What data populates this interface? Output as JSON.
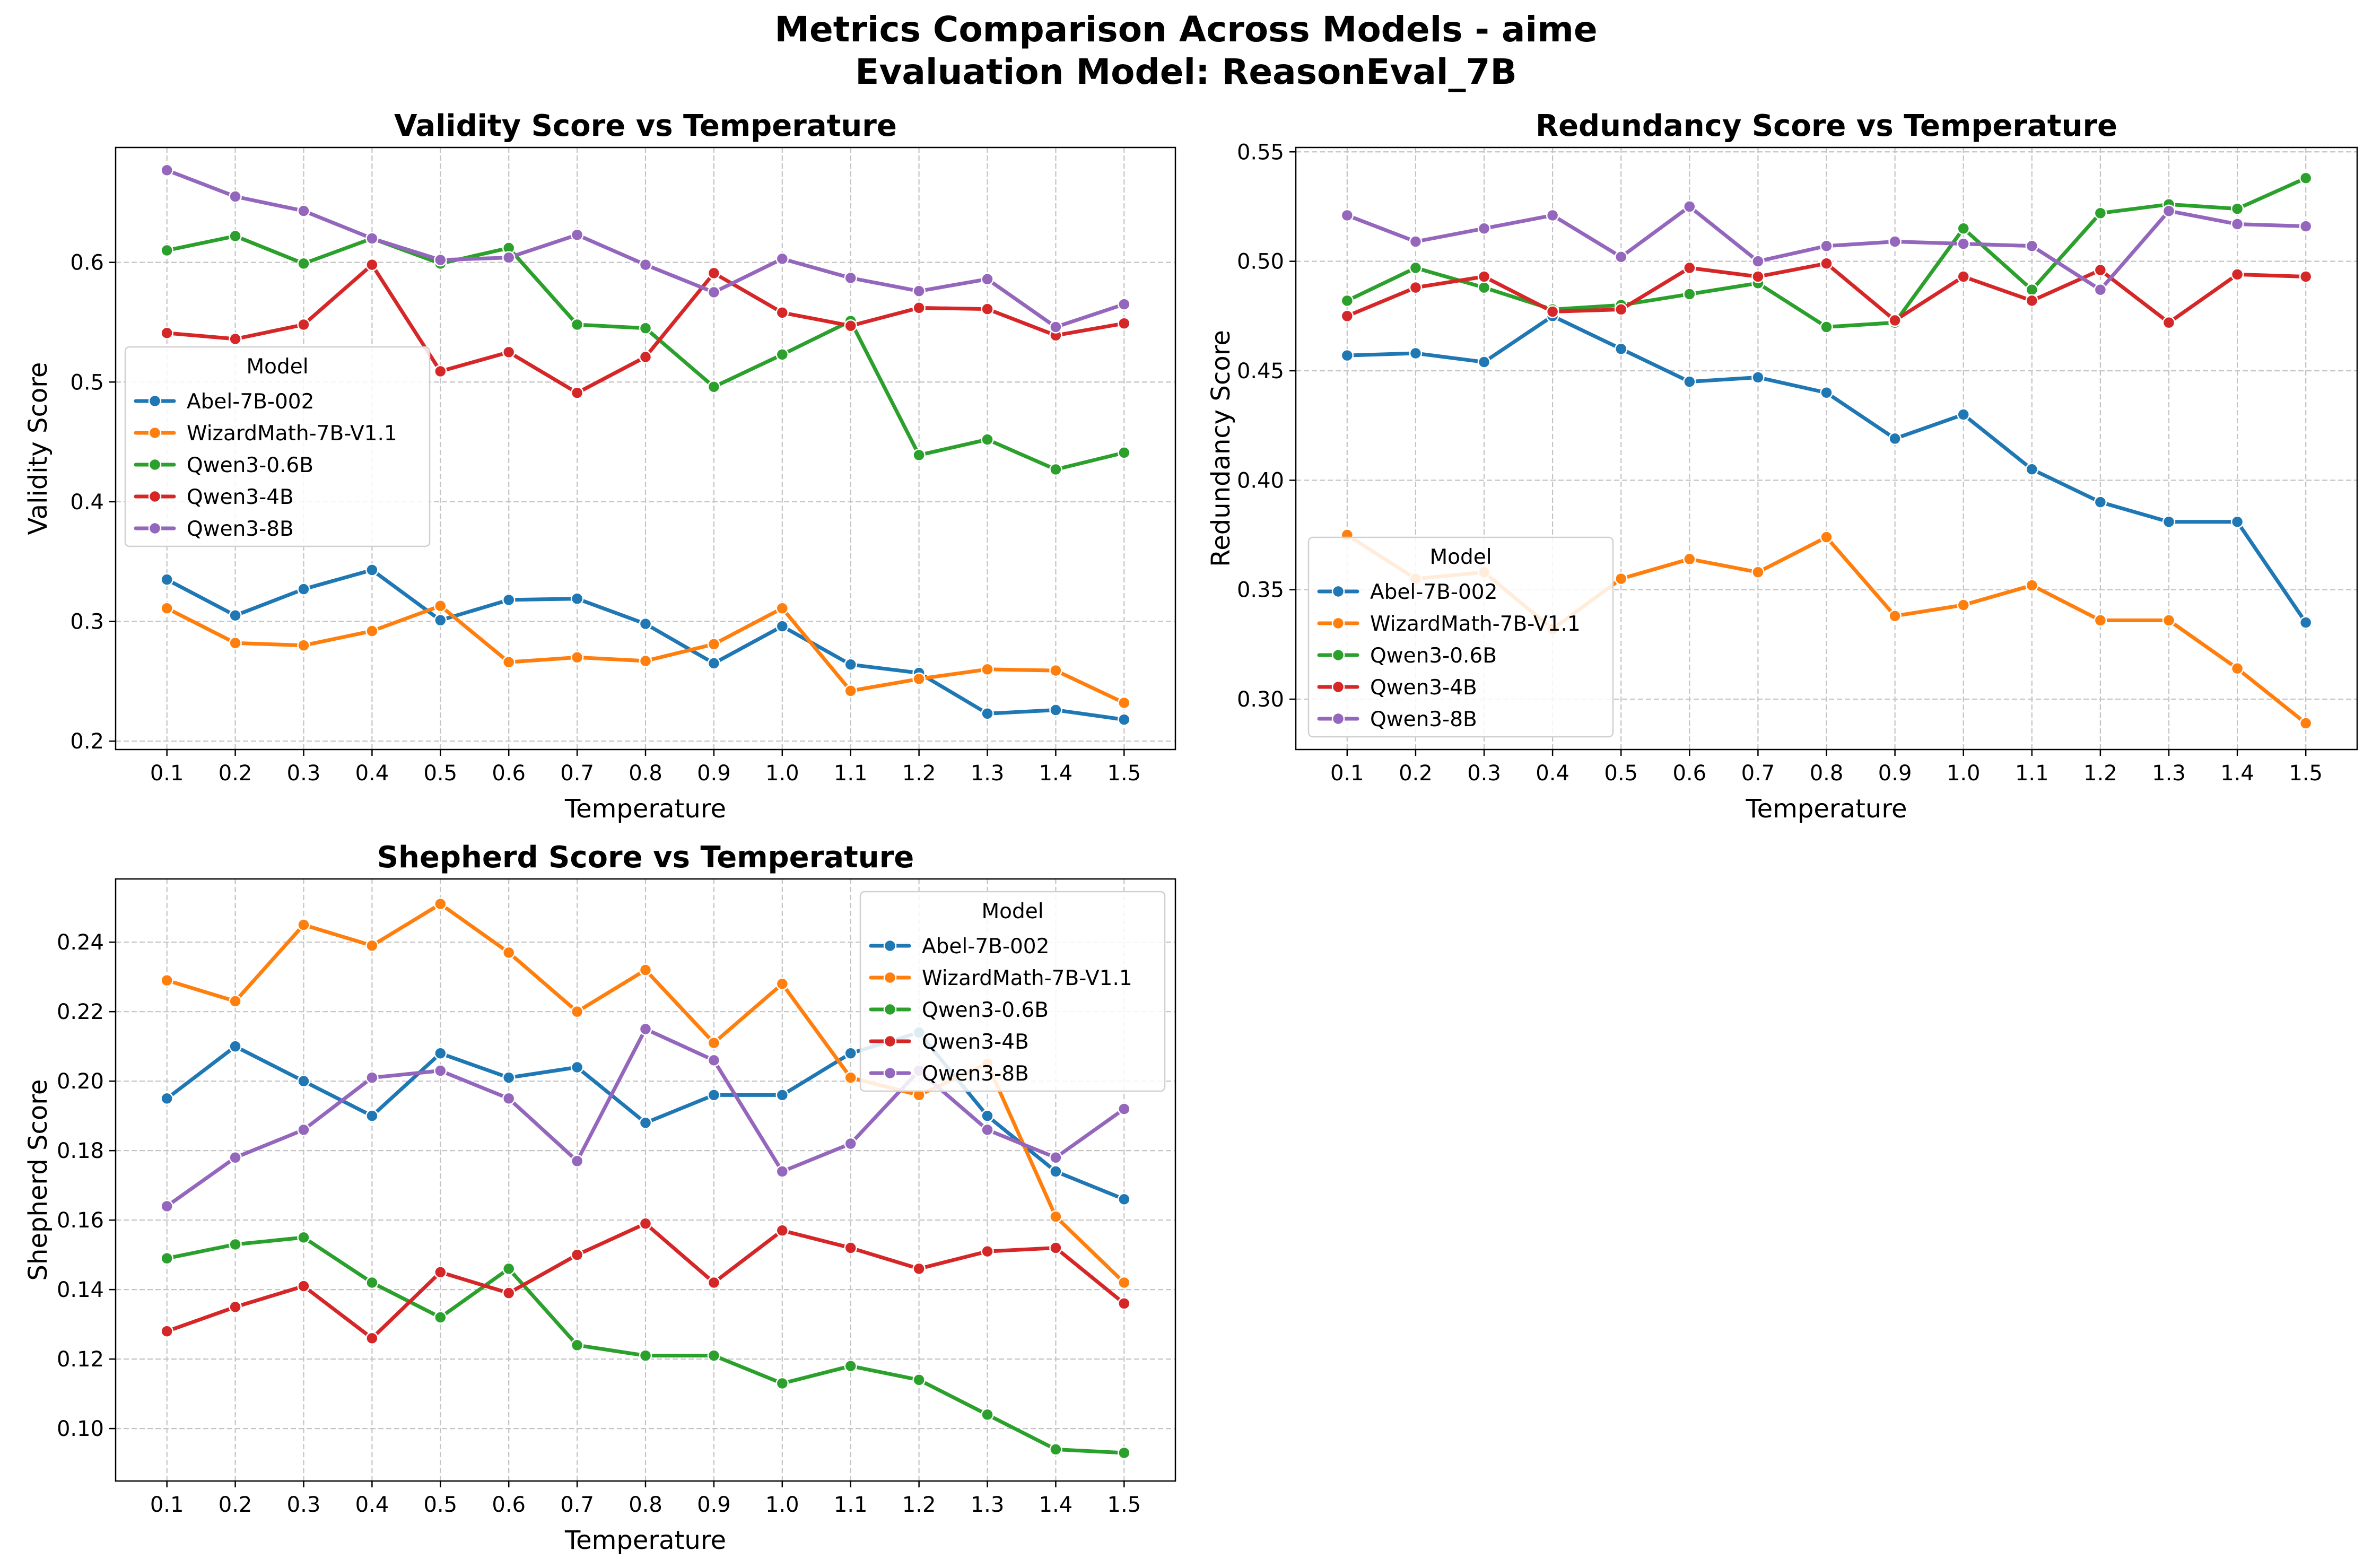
{
  "figure": {
    "title_line1": "Metrics Comparison Across Models - aime",
    "title_line2": "Evaluation Model: ReasonEval_7B"
  },
  "legend_title": "Model",
  "chart_data": [
    {
      "type": "line",
      "title": "Validity Score vs Temperature",
      "xlabel": "Temperature",
      "ylabel": "Validity Score",
      "x": [
        0.1,
        0.2,
        0.3,
        0.4,
        0.5,
        0.6,
        0.7,
        0.8,
        0.9,
        1.0,
        1.1,
        1.2,
        1.3,
        1.4,
        1.5
      ],
      "xlim": [
        0.025,
        1.575
      ],
      "ylim": [
        0.193,
        0.696
      ],
      "yticks": [
        0.2,
        0.3,
        0.4,
        0.5,
        0.6
      ],
      "grid": true,
      "legend_position": "center-left",
      "series": [
        {
          "name": "Abel-7B-002",
          "color": "#1f77b4",
          "values": [
            0.335,
            0.305,
            0.327,
            0.343,
            0.301,
            0.318,
            0.319,
            0.298,
            0.265,
            0.296,
            0.264,
            0.257,
            0.223,
            0.226,
            0.218
          ]
        },
        {
          "name": "WizardMath-7B-V1.1",
          "color": "#ff7f0e",
          "values": [
            0.311,
            0.282,
            0.28,
            0.292,
            0.313,
            0.266,
            0.27,
            0.267,
            0.281,
            0.311,
            0.242,
            0.252,
            0.26,
            0.259,
            0.232
          ]
        },
        {
          "name": "Qwen3-0.6B",
          "color": "#2ca02c",
          "values": [
            0.61,
            0.622,
            0.599,
            0.62,
            0.599,
            0.612,
            0.548,
            0.545,
            0.496,
            0.523,
            0.551,
            0.439,
            0.452,
            0.427,
            0.441
          ]
        },
        {
          "name": "Qwen3-4B",
          "color": "#d62728",
          "values": [
            0.541,
            0.536,
            0.548,
            0.598,
            0.509,
            0.525,
            0.491,
            0.521,
            0.591,
            0.558,
            0.547,
            0.562,
            0.561,
            0.539,
            0.549
          ]
        },
        {
          "name": "Qwen3-8B",
          "color": "#9467bd",
          "values": [
            0.677,
            0.655,
            0.643,
            0.62,
            0.602,
            0.604,
            0.623,
            0.598,
            0.575,
            0.603,
            0.587,
            0.576,
            0.586,
            0.546,
            0.565
          ]
        }
      ]
    },
    {
      "type": "line",
      "title": "Redundancy Score vs Temperature",
      "xlabel": "Temperature",
      "ylabel": "Redundancy Score",
      "x": [
        0.1,
        0.2,
        0.3,
        0.4,
        0.5,
        0.6,
        0.7,
        0.8,
        0.9,
        1.0,
        1.1,
        1.2,
        1.3,
        1.4,
        1.5
      ],
      "xlim": [
        0.025,
        1.575
      ],
      "ylim": [
        0.277,
        0.552
      ],
      "yticks": [
        0.3,
        0.35,
        0.4,
        0.45,
        0.5,
        0.55
      ],
      "grid": true,
      "legend_position": "lower-left",
      "series": [
        {
          "name": "Abel-7B-002",
          "color": "#1f77b4",
          "values": [
            0.457,
            0.458,
            0.454,
            0.475,
            0.46,
            0.445,
            0.447,
            0.44,
            0.419,
            0.43,
            0.405,
            0.39,
            0.381,
            0.381,
            0.335
          ]
        },
        {
          "name": "WizardMath-7B-V1.1",
          "color": "#ff7f0e",
          "values": [
            0.375,
            0.355,
            0.358,
            0.332,
            0.355,
            0.364,
            0.358,
            0.374,
            0.338,
            0.343,
            0.352,
            0.336,
            0.336,
            0.314,
            0.289
          ]
        },
        {
          "name": "Qwen3-0.6B",
          "color": "#2ca02c",
          "values": [
            0.482,
            0.497,
            0.488,
            0.478,
            0.48,
            0.485,
            0.49,
            0.47,
            0.472,
            0.515,
            0.487,
            0.522,
            0.526,
            0.524,
            0.538
          ]
        },
        {
          "name": "Qwen3-4B",
          "color": "#d62728",
          "values": [
            0.475,
            0.488,
            0.493,
            0.477,
            0.478,
            0.497,
            0.493,
            0.499,
            0.473,
            0.493,
            0.482,
            0.496,
            0.472,
            0.494,
            0.493
          ]
        },
        {
          "name": "Qwen3-8B",
          "color": "#9467bd",
          "values": [
            0.521,
            0.509,
            0.515,
            0.521,
            0.502,
            0.525,
            0.5,
            0.507,
            0.509,
            0.508,
            0.507,
            0.487,
            0.523,
            0.517,
            0.516
          ]
        }
      ]
    },
    {
      "type": "line",
      "title": "Shepherd Score vs Temperature",
      "xlabel": "Temperature",
      "ylabel": "Shepherd Score",
      "x": [
        0.1,
        0.2,
        0.3,
        0.4,
        0.5,
        0.6,
        0.7,
        0.8,
        0.9,
        1.0,
        1.1,
        1.2,
        1.3,
        1.4,
        1.5
      ],
      "xlim": [
        0.025,
        1.575
      ],
      "ylim": [
        0.0849,
        0.2582
      ],
      "yticks": [
        0.1,
        0.12,
        0.14,
        0.16,
        0.18,
        0.2,
        0.22,
        0.24
      ],
      "grid": true,
      "legend_position": "top-right",
      "series": [
        {
          "name": "Abel-7B-002",
          "color": "#1f77b4",
          "values": [
            0.195,
            0.21,
            0.2,
            0.19,
            0.208,
            0.201,
            0.204,
            0.188,
            0.196,
            0.196,
            0.208,
            0.214,
            0.19,
            0.174,
            0.166
          ]
        },
        {
          "name": "WizardMath-7B-V1.1",
          "color": "#ff7f0e",
          "values": [
            0.229,
            0.223,
            0.245,
            0.239,
            0.251,
            0.237,
            0.22,
            0.232,
            0.211,
            0.228,
            0.201,
            0.196,
            0.205,
            0.161,
            0.142
          ]
        },
        {
          "name": "Qwen3-0.6B",
          "color": "#2ca02c",
          "values": [
            0.149,
            0.153,
            0.155,
            0.142,
            0.132,
            0.146,
            0.124,
            0.121,
            0.121,
            0.113,
            0.118,
            0.114,
            0.104,
            0.094,
            0.093
          ]
        },
        {
          "name": "Qwen3-4B",
          "color": "#d62728",
          "values": [
            0.128,
            0.135,
            0.141,
            0.126,
            0.145,
            0.139,
            0.15,
            0.159,
            0.142,
            0.157,
            0.152,
            0.146,
            0.151,
            0.152,
            0.136
          ]
        },
        {
          "name": "Qwen3-8B",
          "color": "#9467bd",
          "values": [
            0.164,
            0.178,
            0.186,
            0.201,
            0.203,
            0.195,
            0.177,
            0.215,
            0.206,
            0.174,
            0.182,
            0.203,
            0.186,
            0.178,
            0.192
          ]
        }
      ]
    }
  ]
}
